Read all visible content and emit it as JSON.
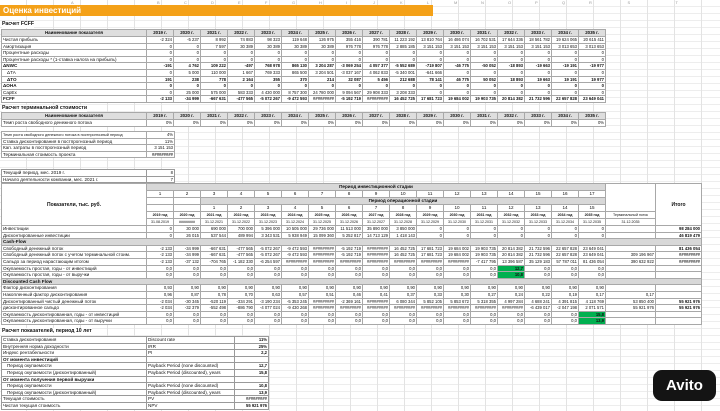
{
  "title": "Оценка инвестиций",
  "watermark": "Avito",
  "colors": {
    "title_bg": "#F4A118",
    "green_highlight": "#00B050",
    "header_bg": "#DEDEDE"
  },
  "column_letters": [
    "A",
    "B",
    "C",
    "D",
    "E",
    "F",
    "G",
    "H",
    "I",
    "J",
    "K",
    "L",
    "M",
    "N",
    "O",
    "P",
    "Q",
    "R",
    "S",
    "T"
  ],
  "fcff": {
    "heading": "Расчет FCFF",
    "name_header": "Наименование показателя",
    "year_headers": [
      "2019 г.",
      "2020 г.",
      "2021 г.",
      "2022 г.",
      "2023 г.",
      "2024 г.",
      "2025 г.",
      "2026 г.",
      "2027 г.",
      "2028 г.",
      "2029 г.",
      "2030 г.",
      "2031 г.",
      "2032 г.",
      "2033 г.",
      "2034 г.",
      "2035 г."
    ],
    "rows": [
      {
        "label": "Чистая прибыль",
        "values": [
          "-2 324",
          "-5 237",
          "8 992",
          "74 883",
          "98 323",
          "119 648",
          "126 975",
          "355 416",
          "390 781",
          "11 223 192",
          "13 810 764",
          "16 486 074",
          "16 702 531",
          "17 644 336",
          "18 561 782",
          "19 624 065",
          "20 615 411"
        ]
      },
      {
        "label": "Амортизация",
        "values": [
          "0",
          "0",
          "7 597",
          "30 389",
          "30 389",
          "30 389",
          "30 389",
          "976 778",
          "976 778",
          "2 885 185",
          "3 151 153",
          "3 151 153",
          "3 151 153",
          "3 151 153",
          "3 151 153",
          "3 013 653",
          "3 013 653"
        ]
      },
      {
        "label": "Процентные расходы",
        "values": [
          "0",
          "0",
          "0",
          "0",
          "0",
          "0",
          "0",
          "0",
          "0",
          "0",
          "0",
          "0",
          "0",
          "0",
          "0",
          "0",
          "0"
        ]
      },
      {
        "label": "Процентные расходы * (1-ставка налога на прибыль)",
        "values": [
          "0",
          "0",
          "0",
          "0",
          "0",
          "0",
          "0",
          "0",
          "0",
          "0",
          "0",
          "0",
          "0",
          "0",
          "0",
          "0",
          "0"
        ]
      },
      {
        "label": "ΔNWC",
        "bold": true,
        "values": [
          "-191",
          "4 762",
          "109 222",
          "-497",
          "768 978",
          "865 130",
          "3 204 287",
          "-3 069 254",
          "4 057 377",
          "-5 552 689",
          "-719 807",
          "-46 775",
          "-50 052",
          "-18 893",
          "-19 663",
          "-19 191",
          "-19 977"
        ]
      },
      {
        "label": "ΔТА",
        "indent": true,
        "values": [
          "0",
          "5 000",
          "110 000",
          "1 667",
          "769 333",
          "865 500",
          "3 204 501",
          "-3 037 167",
          "4 062 833",
          "-5 340 001",
          "-641 666",
          "0",
          "0",
          "0",
          "0",
          "0",
          "0"
        ]
      },
      {
        "label": "ΔТО",
        "indent": true,
        "bold": true,
        "values": [
          "191",
          "238",
          "778",
          "2 164",
          "355",
          "370",
          "214",
          "32 087",
          "5 456",
          "212 688",
          "78 141",
          "46 775",
          "50 052",
          "18 893",
          "19 663",
          "19 191",
          "19 977"
        ]
      },
      {
        "label": "ΔОНА",
        "bold": true,
        "values": [
          "0",
          "0",
          "0",
          "0",
          "0",
          "0",
          "0",
          "0",
          "0",
          "0",
          "0",
          "0",
          "0",
          "0",
          "0",
          "0",
          "0"
        ]
      },
      {
        "label": "CapEx",
        "values": [
          "0",
          "25 000",
          "575 000",
          "583 333",
          "4 430 000",
          "8 757 300",
          "24 780 000",
          "9 094 567",
          "29 908 333",
          "3 208 333",
          "0",
          "0",
          "0",
          "0",
          "0",
          "0",
          "0"
        ]
      },
      {
        "label": "FCFF",
        "bold": true,
        "values": [
          "-2 133",
          "-34 999",
          "-667 631",
          "-477 565",
          "-5 072 267",
          "-9 472 593",
          "#########",
          "-5 192 719",
          "#########",
          "16 452 725",
          "17 681 723",
          "19 684 002",
          "19 903 735",
          "20 814 382",
          "21 732 596",
          "22 657 828",
          "23 649 041"
        ]
      }
    ]
  },
  "terminal": {
    "heading": "Расчет терминальной стоимости",
    "name_header": "Наименование показателя",
    "year_headers": [
      "2019 г.",
      "2020 г.",
      "2021 г.",
      "2022 г.",
      "2023 г.",
      "2024 г.",
      "2025 г.",
      "2026 г.",
      "2027 г.",
      "2028 г.",
      "2029 г.",
      "2030 г.",
      "2031 г.",
      "2032 г.",
      "2033 г.",
      "2034 г.",
      "2035 г."
    ],
    "growth_label": "Темп роста свободного денежного потока",
    "growth_values": [
      "0%",
      "0%",
      "0%",
      "0%",
      "0%",
      "0%",
      "0%",
      "0%",
      "0%",
      "0%",
      "0%",
      "0%",
      "0%",
      "0%",
      "0%",
      "0%",
      "0%"
    ],
    "params": [
      {
        "label": "Темп роста свободного денежного потока в постпрогнозный период",
        "value": "4%"
      },
      {
        "label": "Ставка дисконтирования в постпрогнозный период",
        "value": "11%"
      },
      {
        "label": "Кап. затраты в постпрогнозный период",
        "value": "3 151 153"
      },
      {
        "label": "Терминальная стоимость проекта",
        "value": "#########"
      }
    ],
    "info": [
      {
        "label": "Текущий период, мес. 2019 г.",
        "value": "8"
      },
      {
        "label": "Начало деятельности компании, мес. 2021 г.",
        "value": "7"
      }
    ]
  },
  "main": {
    "corner_label": "Показатели, тыс. руб.",
    "invest_stage_label": "Период инвестиционной стадии",
    "invest_stage_numbers": [
      "1",
      "2",
      "3",
      "4",
      "5",
      "6",
      "7",
      "8",
      "9",
      "10",
      "11",
      "12",
      "13",
      "14",
      "15",
      "16",
      "17"
    ],
    "oper_stage_label": "Период операционной стадии",
    "oper_stage_numbers": [
      "1",
      "2",
      "3",
      "4",
      "5",
      "6",
      "7",
      "8",
      "9",
      "10",
      "11",
      "12",
      "13",
      "14",
      "15"
    ],
    "years": [
      "2019 год",
      "2020 год",
      "2021 год",
      "2022 год",
      "2023 год",
      "2024 год",
      "2025 год",
      "2026 год",
      "2027 год",
      "2028 год",
      "2029 год",
      "2030 год",
      "2031 год",
      "2032 год",
      "2033 год",
      "2034 год",
      "2035 год"
    ],
    "terminal_col_label": "Терминальный поток",
    "dates": [
      "31.08.2019",
      "########",
      "31.12.2021",
      "31.12.2022",
      "31.12.2023",
      "31.12.2024",
      "31.12.2025",
      "31.12.2026",
      "31.12.2027",
      "31.12.2028",
      "31.12.2029",
      "31.12.2030",
      "31.12.2031",
      "31.12.2032",
      "31.12.2033",
      "31.12.2034",
      "31.12.2035"
    ],
    "terminal_col_date": "31.12.2035",
    "total_label": "Итого",
    "rows": [
      {
        "label": "Инвестиции",
        "values": [
          "0",
          "30 000",
          "690 000",
          "700 000",
          "5 396 000",
          "10 505 000",
          "29 736 000",
          "11 513 000",
          "35 890 000",
          "3 850 000",
          "0",
          "0",
          "0",
          "0",
          "0",
          "0",
          "0",
          "",
          "98 284 000"
        ]
      },
      {
        "label": "Дисконтированные инвестиции",
        "values": [
          "0",
          "26 015",
          "537 544",
          "489 994",
          "3 343 531",
          "5 938 949",
          "15 099 360",
          "5 252 817",
          "14 713 129",
          "1 418 143",
          "0",
          "0",
          "0",
          "0",
          "0",
          "0",
          "0",
          "",
          "46 819 479"
        ]
      },
      {
        "label": "Cash-Flow",
        "type": "section"
      },
      {
        "label": "Свободный денежный поток",
        "values": [
          "-2 133",
          "-34 999",
          "-667 631",
          "-477 565",
          "-5 072 267",
          "-9 472 593",
          "#########",
          "-5 192 719",
          "#########",
          "16 452 725",
          "17 681 723",
          "19 684 002",
          "19 903 735",
          "20 814 382",
          "21 732 596",
          "22 657 828",
          "23 649 041",
          "",
          "81 436 054"
        ]
      },
      {
        "label": "Свободный денежный поток с учетом терминальной стоим.",
        "values": [
          "-2 133",
          "-34 999",
          "-667 631",
          "-477 565",
          "-5 072 267",
          "-9 472 593",
          "#########",
          "-5 192 719",
          "#########",
          "16 452 725",
          "17 681 723",
          "19 684 002",
          "19 903 735",
          "20 814 382",
          "21 732 596",
          "22 657 828",
          "23 649 041",
          "309 196 967",
          "#########"
        ]
      },
      {
        "label": "Сальдо за период нарастающим итогом",
        "values": [
          "-2 133",
          "-37 132",
          "-704 765",
          "-1 182 330",
          "-6 254 597",
          "#########",
          "#########",
          "#########",
          "#########",
          "#########",
          "#########",
          "#########",
          "-7 417 795",
          "13 396 587",
          "35 129 183",
          "57 787 011",
          "81 436 054",
          "390 632 922",
          "#########"
        ]
      },
      {
        "label": "Окупаемость простая, годы - от инвестиций",
        "green": [
          13
        ],
        "values": [
          "0,0",
          "0,0",
          "0,0",
          "0,0",
          "0,0",
          "0,0",
          "0,0",
          "0,0",
          "0,0",
          "0,0",
          "0,0",
          "0,0",
          "0,0",
          "12,7",
          "0,0",
          "0,0",
          "0,0",
          "",
          ""
        ]
      },
      {
        "label": "Окупаемость простая, годы - от выручки",
        "green": [
          13
        ],
        "values": [
          "0,0",
          "0,0",
          "0,0",
          "0,0",
          "0,0",
          "0,0",
          "0,0",
          "0,0",
          "0,0",
          "0,0",
          "0,0",
          "0,0",
          "0,0",
          "10,8",
          "0,0",
          "0,0",
          "0,0",
          "",
          ""
        ]
      },
      {
        "label": "Discounted Cash Flow",
        "type": "section"
      },
      {
        "label": "Фактор дисконтирования",
        "values": [
          "0,93",
          "0,90",
          "0,90",
          "0,90",
          "0,90",
          "0,90",
          "0,90",
          "0,90",
          "0,90",
          "0,90",
          "0,90",
          "0,90",
          "0,90",
          "0,90",
          "0,90",
          "0,90",
          "0,90",
          "",
          ""
        ]
      },
      {
        "label": "Накопленный фактор дисконтирования",
        "values": [
          "0,96",
          "0,87",
          "0,78",
          "0,70",
          "0,63",
          "0,57",
          "0,51",
          "0,46",
          "0,41",
          "0,37",
          "0,33",
          "0,30",
          "0,27",
          "0,24",
          "0,22",
          "0,19",
          "0,17",
          "0,17",
          ""
        ]
      },
      {
        "label": "Дисконтированный чистый денежный поток",
        "values": [
          "-2 034",
          "-30 345",
          "-520 119",
          "-334 291",
          "-3 190 234",
          "-5 353 245",
          "#########",
          "-2 369 161",
          "#########",
          "6 080 344",
          "5 852 105",
          "5 853 672",
          "5 318 355",
          "4 997 284",
          "4 688 241",
          "4 391 815",
          "4 118 769",
          "53 850 400",
          "55 921 976"
        ]
      },
      {
        "label": "дисконтированное сальдо",
        "values": [
          "-2 034",
          "-32 379",
          "-552 498",
          "-886 790",
          "-4 077 024",
          "-9 430 268",
          "#########",
          "#########",
          "#########",
          "#########",
          "#########",
          "#########",
          "#########",
          "#########",
          "-6 439 017",
          "-2 047 198",
          "2 071 571",
          "55 921 976",
          "55 921 976"
        ]
      },
      {
        "label": "Окупаемость дисконтированная, годы - от инвестиций",
        "green": [
          16
        ],
        "values": [
          "0,0",
          "0,0",
          "0,0",
          "0,0",
          "0,0",
          "0,0",
          "0,0",
          "0,0",
          "0,0",
          "0,0",
          "0,0",
          "0,0",
          "0,0",
          "0,0",
          "0,0",
          "0,0",
          "15,8",
          "",
          ""
        ]
      },
      {
        "label": "Окупаемость дисконтированная, годы - от выручки",
        "green": [
          16
        ],
        "values": [
          "0,0",
          "0,0",
          "0,0",
          "0,0",
          "0,0",
          "0,0",
          "0,0",
          "0,0",
          "0,0",
          "0,0",
          "0,0",
          "0,0",
          "0,0",
          "0,0",
          "0,0",
          "0,0",
          "13,9",
          "",
          ""
        ]
      }
    ]
  },
  "summary": {
    "heading": "Расчет показателей, период 10 лет",
    "rows": [
      {
        "label": "Ставка дисконтирования",
        "en": "Discount rate",
        "value": "11%"
      },
      {
        "label": "Внутренняя норма доходности",
        "en": "IRR",
        "value": "25%"
      },
      {
        "label": "Индекс рентабельности",
        "en": "PI",
        "value": "2,2"
      },
      {
        "label": "От момента инвестиций",
        "en": "",
        "value": "",
        "group": true
      },
      {
        "label": "Период окупаемости",
        "en": "Payback Period (none discounted)",
        "value": "12,7",
        "indent": true
      },
      {
        "label": "Период окупаемости (дисконтированный)",
        "en": "Payback Period (discounted), years",
        "value": "15,8",
        "indent": true
      },
      {
        "label": "От момента получения первой выручки",
        "en": "",
        "value": "",
        "group": true
      },
      {
        "label": "Период окупаемости",
        "en": "Payback Period (none discounted)",
        "value": "10,8",
        "indent": true
      },
      {
        "label": "Период окупаемости (дисконтированный)",
        "en": "Payback Period (discounted), years",
        "value": "13,9",
        "indent": true
      },
      {
        "label": "Текущая стоимость",
        "en": "PV",
        "value": "#########"
      },
      {
        "label": "Чистая текущая стоимость",
        "en": "NPV",
        "value": "55 921 976"
      }
    ]
  }
}
